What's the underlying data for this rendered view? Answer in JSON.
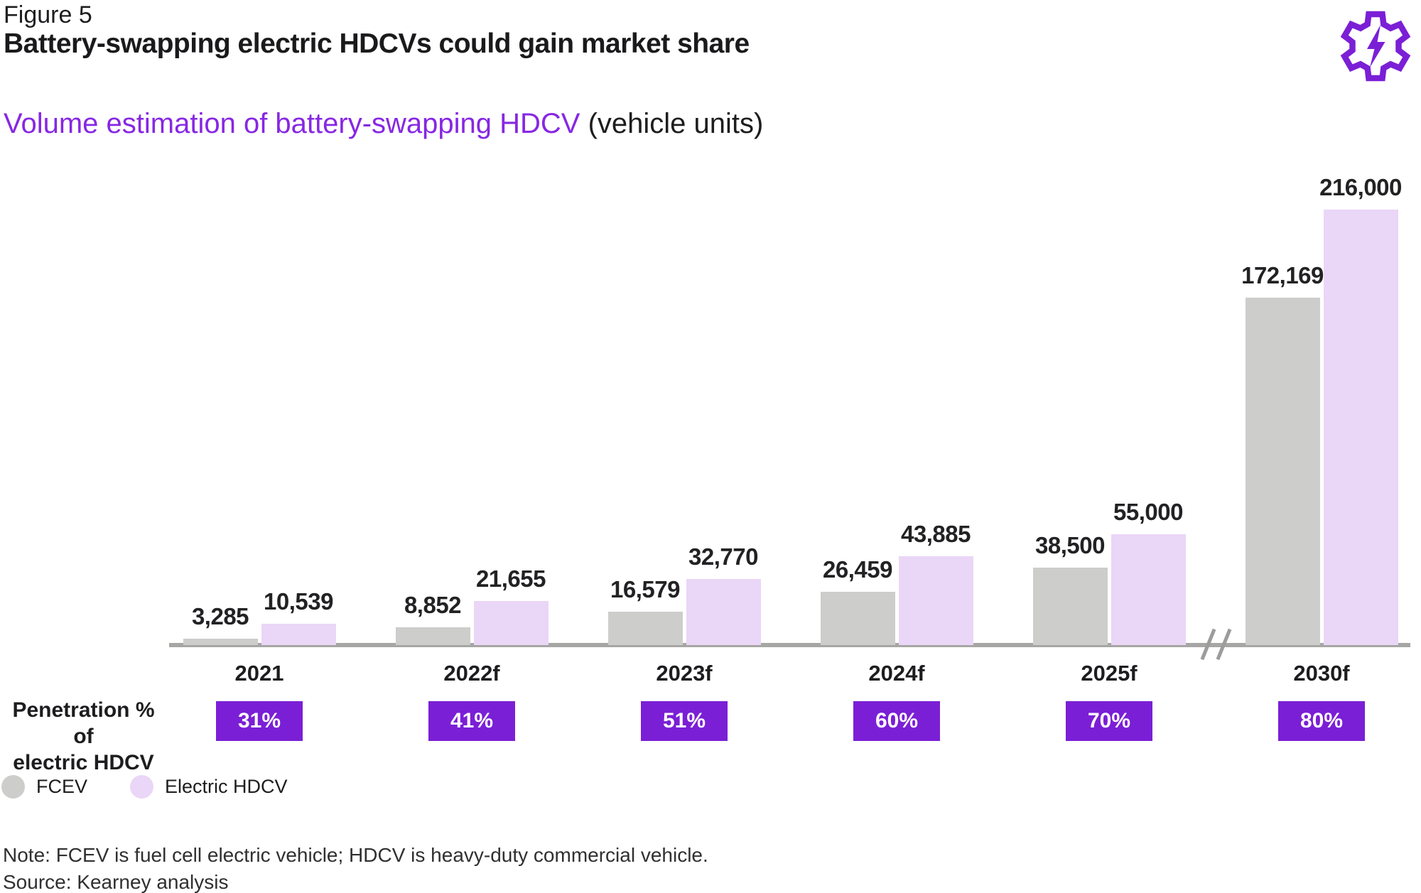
{
  "header": {
    "figure_label": "Figure 5",
    "title": "Battery-swapping electric HDCVs could gain market share"
  },
  "subtitle": {
    "highlight": "Volume estimation of battery-swapping HDCV",
    "suffix": " (vehicle units)"
  },
  "icon": {
    "name": "gear-lightning-icon",
    "color": "#7b1fd6"
  },
  "colors": {
    "accent_purple": "#7b1fd6",
    "subtitle_purple": "#8727e3",
    "bar_gray": "#cdcdcb",
    "bar_light_purple": "#ead6f7",
    "axis_gray": "#a6a6a4",
    "badge_text": "#ffffff"
  },
  "chart_data": {
    "type": "bar",
    "title": "Volume estimation of battery-swapping HDCV (vehicle units)",
    "categories": [
      "2021",
      "2022f",
      "2023f",
      "2024f",
      "2025f",
      "2030f"
    ],
    "series": [
      {
        "name": "FCEV",
        "color": "#cdcdcb",
        "values": [
          3285,
          8852,
          16579,
          26459,
          38500,
          172169
        ],
        "labels": [
          "3,285",
          "8,852",
          "16,579",
          "26,459",
          "38,500",
          "172,169"
        ]
      },
      {
        "name": "Electric HDCV",
        "color": "#ead6f7",
        "values": [
          10539,
          21655,
          32770,
          43885,
          55000,
          216000
        ],
        "labels": [
          "10,539",
          "21,655",
          "32,770",
          "43,885",
          "55,000",
          "216,000"
        ]
      }
    ],
    "ylim": [
      0,
      216000
    ],
    "grid": false,
    "legend_position": "bottom-left",
    "axis_break_between": [
      "2025f",
      "2030f"
    ],
    "penetration": {
      "label_lines": [
        "Penetration % of",
        "electric HDCV"
      ],
      "values": [
        "31%",
        "41%",
        "51%",
        "60%",
        "70%",
        "80%"
      ]
    }
  },
  "legend": [
    {
      "label": "FCEV",
      "color": "#cdcdcb"
    },
    {
      "label": "Electric HDCV",
      "color": "#ead6f7"
    }
  ],
  "footer": {
    "note": "Note: FCEV is fuel cell electric vehicle; HDCV is heavy-duty commercial vehicle.",
    "source": "Source: Kearney analysis"
  }
}
